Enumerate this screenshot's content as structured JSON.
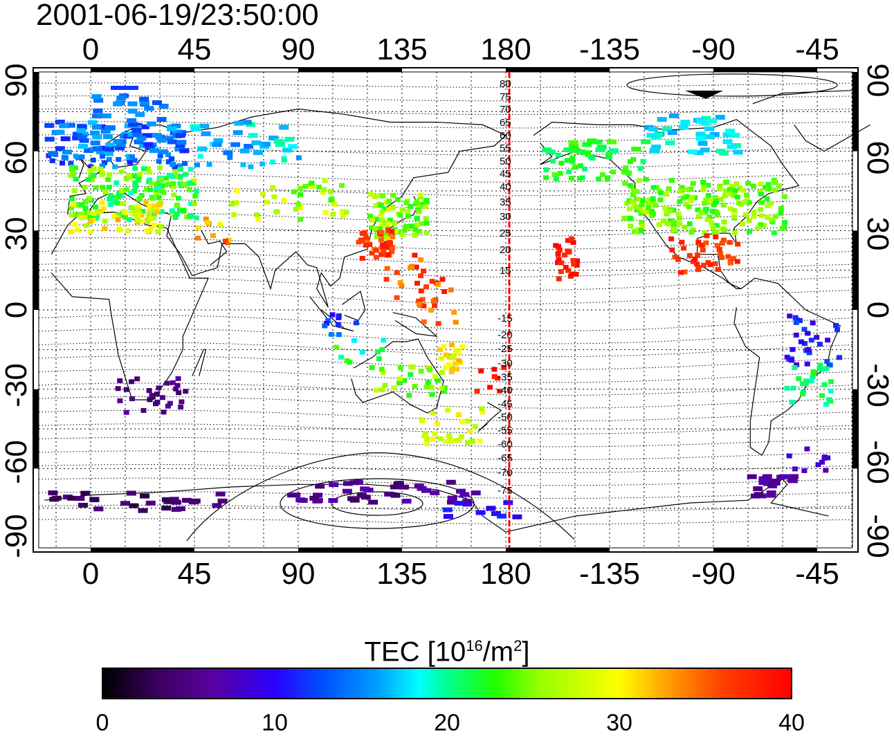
{
  "title": "2001-06-19/23:50:00",
  "axes": {
    "top_ticks": [
      "0",
      "45",
      "90",
      "135",
      "180",
      "-135",
      "-90",
      "-45"
    ],
    "bottom_ticks": [
      "0",
      "45",
      "90",
      "135",
      "180",
      "-135",
      "-90",
      "-45"
    ],
    "left_ticks": [
      "90",
      "60",
      "30",
      "0",
      "-30",
      "-60",
      "-90"
    ],
    "right_ticks": [
      "90",
      "60",
      "30",
      "0",
      "-30",
      "-60",
      "-90"
    ]
  },
  "colorbar": {
    "label_prefix": "TEC  [10",
    "label_exp1": "16",
    "label_mid": "/m",
    "label_exp2": "2",
    "label_suffix": "]",
    "ticks": [
      "0",
      "10",
      "20",
      "30",
      "40"
    ],
    "range": [
      0,
      40
    ]
  },
  "contour_labels": {
    "north": [
      "80",
      "75",
      "70",
      "65",
      "60",
      "55",
      "50",
      "45",
      "40",
      "35",
      "30",
      "25",
      "20",
      "15"
    ],
    "south": [
      "-15",
      "-20",
      "-25",
      "-30",
      "-35",
      "-40",
      "-45",
      "-50",
      "-55",
      "-60",
      "-65",
      "-70",
      "-75"
    ]
  },
  "colors": {
    "meridian_line": "#ff0000",
    "grid": "#000000"
  }
}
